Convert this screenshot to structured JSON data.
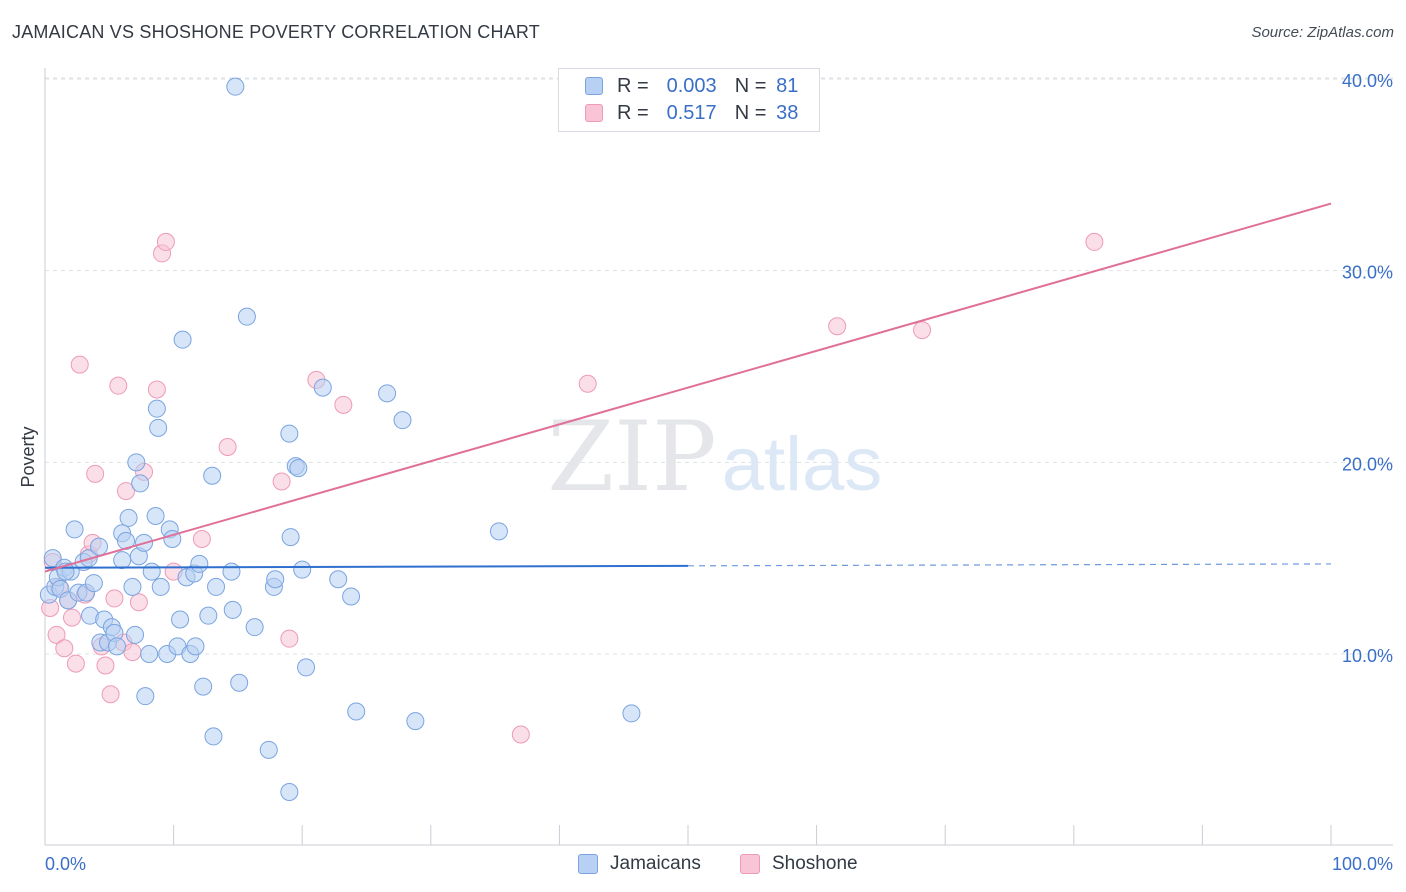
{
  "header": {
    "title": "JAMAICAN VS SHOSHONE POVERTY CORRELATION CHART",
    "source": "Source: ZipAtlas.com"
  },
  "colors": {
    "blue_fill": "#b7d0f3",
    "blue_stroke": "#7aa4e0",
    "blue_line": "#2f6fce",
    "pink_fill": "#f8c4d6",
    "pink_stroke": "#ee9ab8",
    "pink_line": "#e07098",
    "axis_text": "#3a6fc8",
    "grid": "#dde1e6"
  },
  "legend": {
    "rows": [
      {
        "r_label": "R =",
        "r_value": "0.003",
        "n_label": "N =",
        "n_value": "81"
      },
      {
        "r_label": "R =",
        "r_value": "0.517",
        "n_label": "N =",
        "n_value": "38"
      }
    ],
    "bottom": [
      {
        "label": "Jamaicans"
      },
      {
        "label": "Shoshone"
      }
    ]
  },
  "chart_data": {
    "type": "scatter",
    "title": "JAMAICAN VS SHOSHONE POVERTY CORRELATION CHART",
    "xlabel": "",
    "ylabel": "Poverty",
    "xlim": [
      0,
      100
    ],
    "ylim": [
      0,
      42
    ],
    "x_tick_labels": [
      "0.0%",
      "100.0%"
    ],
    "y_ticks": [
      10,
      20,
      30,
      40
    ],
    "y_tick_labels": [
      "10.0%",
      "20.0%",
      "30.0%",
      "40.0%"
    ],
    "grid": "horizontal dashed",
    "legend_position": "top-center",
    "watermark": "ZIPatlas",
    "series": [
      {
        "name": "Jamaicans",
        "color": "#b7d0f3",
        "R": 0.003,
        "N": 81,
        "trend": {
          "x": [
            0,
            50
          ],
          "y": [
            14.5,
            14.6
          ],
          "dashed_extension": {
            "x": [
              50,
              100
            ],
            "y": [
              14.6,
              14.7
            ]
          }
        },
        "points": [
          [
            0.3,
            13.1
          ],
          [
            0.6,
            15.0
          ],
          [
            0.8,
            13.5
          ],
          [
            1.0,
            14.0
          ],
          [
            1.2,
            13.4
          ],
          [
            1.5,
            14.5
          ],
          [
            1.8,
            12.8
          ],
          [
            2.0,
            14.3
          ],
          [
            2.3,
            16.5
          ],
          [
            2.6,
            13.2
          ],
          [
            3.0,
            14.8
          ],
          [
            3.2,
            13.2
          ],
          [
            3.4,
            15.0
          ],
          [
            3.5,
            12.0
          ],
          [
            3.8,
            13.7
          ],
          [
            4.2,
            15.6
          ],
          [
            4.3,
            10.6
          ],
          [
            4.6,
            11.8
          ],
          [
            4.9,
            10.6
          ],
          [
            5.2,
            11.4
          ],
          [
            5.4,
            11.1
          ],
          [
            5.6,
            10.4
          ],
          [
            6.0,
            16.3
          ],
          [
            6.0,
            14.9
          ],
          [
            6.3,
            15.9
          ],
          [
            6.5,
            17.1
          ],
          [
            6.8,
            13.5
          ],
          [
            7.1,
            20.0
          ],
          [
            7.3,
            15.1
          ],
          [
            7.4,
            18.9
          ],
          [
            7.7,
            15.8
          ],
          [
            7.8,
            7.8
          ],
          [
            8.1,
            10.0
          ],
          [
            8.3,
            14.3
          ],
          [
            8.6,
            17.2
          ],
          [
            8.7,
            22.8
          ],
          [
            8.8,
            21.8
          ],
          [
            9.0,
            13.5
          ],
          [
            9.5,
            10.0
          ],
          [
            9.7,
            16.5
          ],
          [
            9.9,
            16.0
          ],
          [
            10.3,
            10.4
          ],
          [
            10.5,
            11.8
          ],
          [
            10.7,
            26.4
          ],
          [
            11.0,
            14.0
          ],
          [
            11.3,
            10.0
          ],
          [
            11.6,
            14.2
          ],
          [
            11.7,
            10.4
          ],
          [
            12.0,
            14.7
          ],
          [
            12.3,
            8.3
          ],
          [
            12.7,
            12.0
          ],
          [
            13.0,
            19.3
          ],
          [
            13.1,
            5.7
          ],
          [
            13.3,
            13.5
          ],
          [
            14.5,
            14.3
          ],
          [
            14.6,
            12.3
          ],
          [
            14.8,
            39.6
          ],
          [
            15.1,
            8.5
          ],
          [
            15.7,
            27.6
          ],
          [
            16.3,
            11.4
          ],
          [
            17.4,
            5.0
          ],
          [
            17.8,
            13.5
          ],
          [
            17.9,
            13.9
          ],
          [
            19.0,
            21.5
          ],
          [
            19.1,
            16.1
          ],
          [
            19.5,
            19.8
          ],
          [
            19.7,
            19.7
          ],
          [
            20.0,
            14.4
          ],
          [
            20.3,
            9.3
          ],
          [
            21.6,
            23.9
          ],
          [
            22.8,
            13.9
          ],
          [
            23.8,
            13.0
          ],
          [
            24.2,
            7.0
          ],
          [
            26.6,
            23.6
          ],
          [
            27.8,
            22.2
          ],
          [
            28.8,
            6.5
          ],
          [
            35.3,
            16.4
          ],
          [
            45.6,
            6.9
          ],
          [
            19.0,
            2.8
          ],
          [
            1.6,
            14.3
          ],
          [
            7.0,
            11.0
          ]
        ]
      },
      {
        "name": "Shoshone",
        "color": "#f8c4d6",
        "R": 0.517,
        "N": 38,
        "trend": {
          "x": [
            0,
            100
          ],
          "y": [
            14.3,
            33.5
          ]
        },
        "points": [
          [
            0.4,
            12.4
          ],
          [
            0.6,
            14.8
          ],
          [
            0.9,
            11.0
          ],
          [
            1.1,
            13.5
          ],
          [
            1.5,
            10.3
          ],
          [
            1.8,
            12.8
          ],
          [
            2.1,
            11.9
          ],
          [
            2.4,
            9.5
          ],
          [
            2.7,
            25.1
          ],
          [
            3.1,
            13.1
          ],
          [
            3.4,
            15.2
          ],
          [
            3.7,
            15.8
          ],
          [
            3.9,
            19.4
          ],
          [
            4.4,
            10.4
          ],
          [
            4.7,
            9.4
          ],
          [
            5.1,
            7.9
          ],
          [
            5.4,
            12.9
          ],
          [
            5.7,
            24.0
          ],
          [
            6.1,
            10.6
          ],
          [
            6.3,
            18.5
          ],
          [
            6.8,
            10.1
          ],
          [
            7.3,
            12.7
          ],
          [
            7.7,
            19.5
          ],
          [
            8.7,
            23.8
          ],
          [
            9.1,
            30.9
          ],
          [
            9.4,
            31.5
          ],
          [
            10.0,
            14.3
          ],
          [
            12.2,
            16.0
          ],
          [
            14.2,
            20.8
          ],
          [
            18.4,
            19.0
          ],
          [
            19.0,
            10.8
          ],
          [
            21.1,
            24.3
          ],
          [
            23.2,
            23.0
          ],
          [
            37.0,
            5.8
          ],
          [
            42.2,
            24.1
          ],
          [
            61.6,
            27.1
          ],
          [
            68.2,
            26.9
          ],
          [
            81.6,
            31.5
          ]
        ]
      }
    ]
  }
}
